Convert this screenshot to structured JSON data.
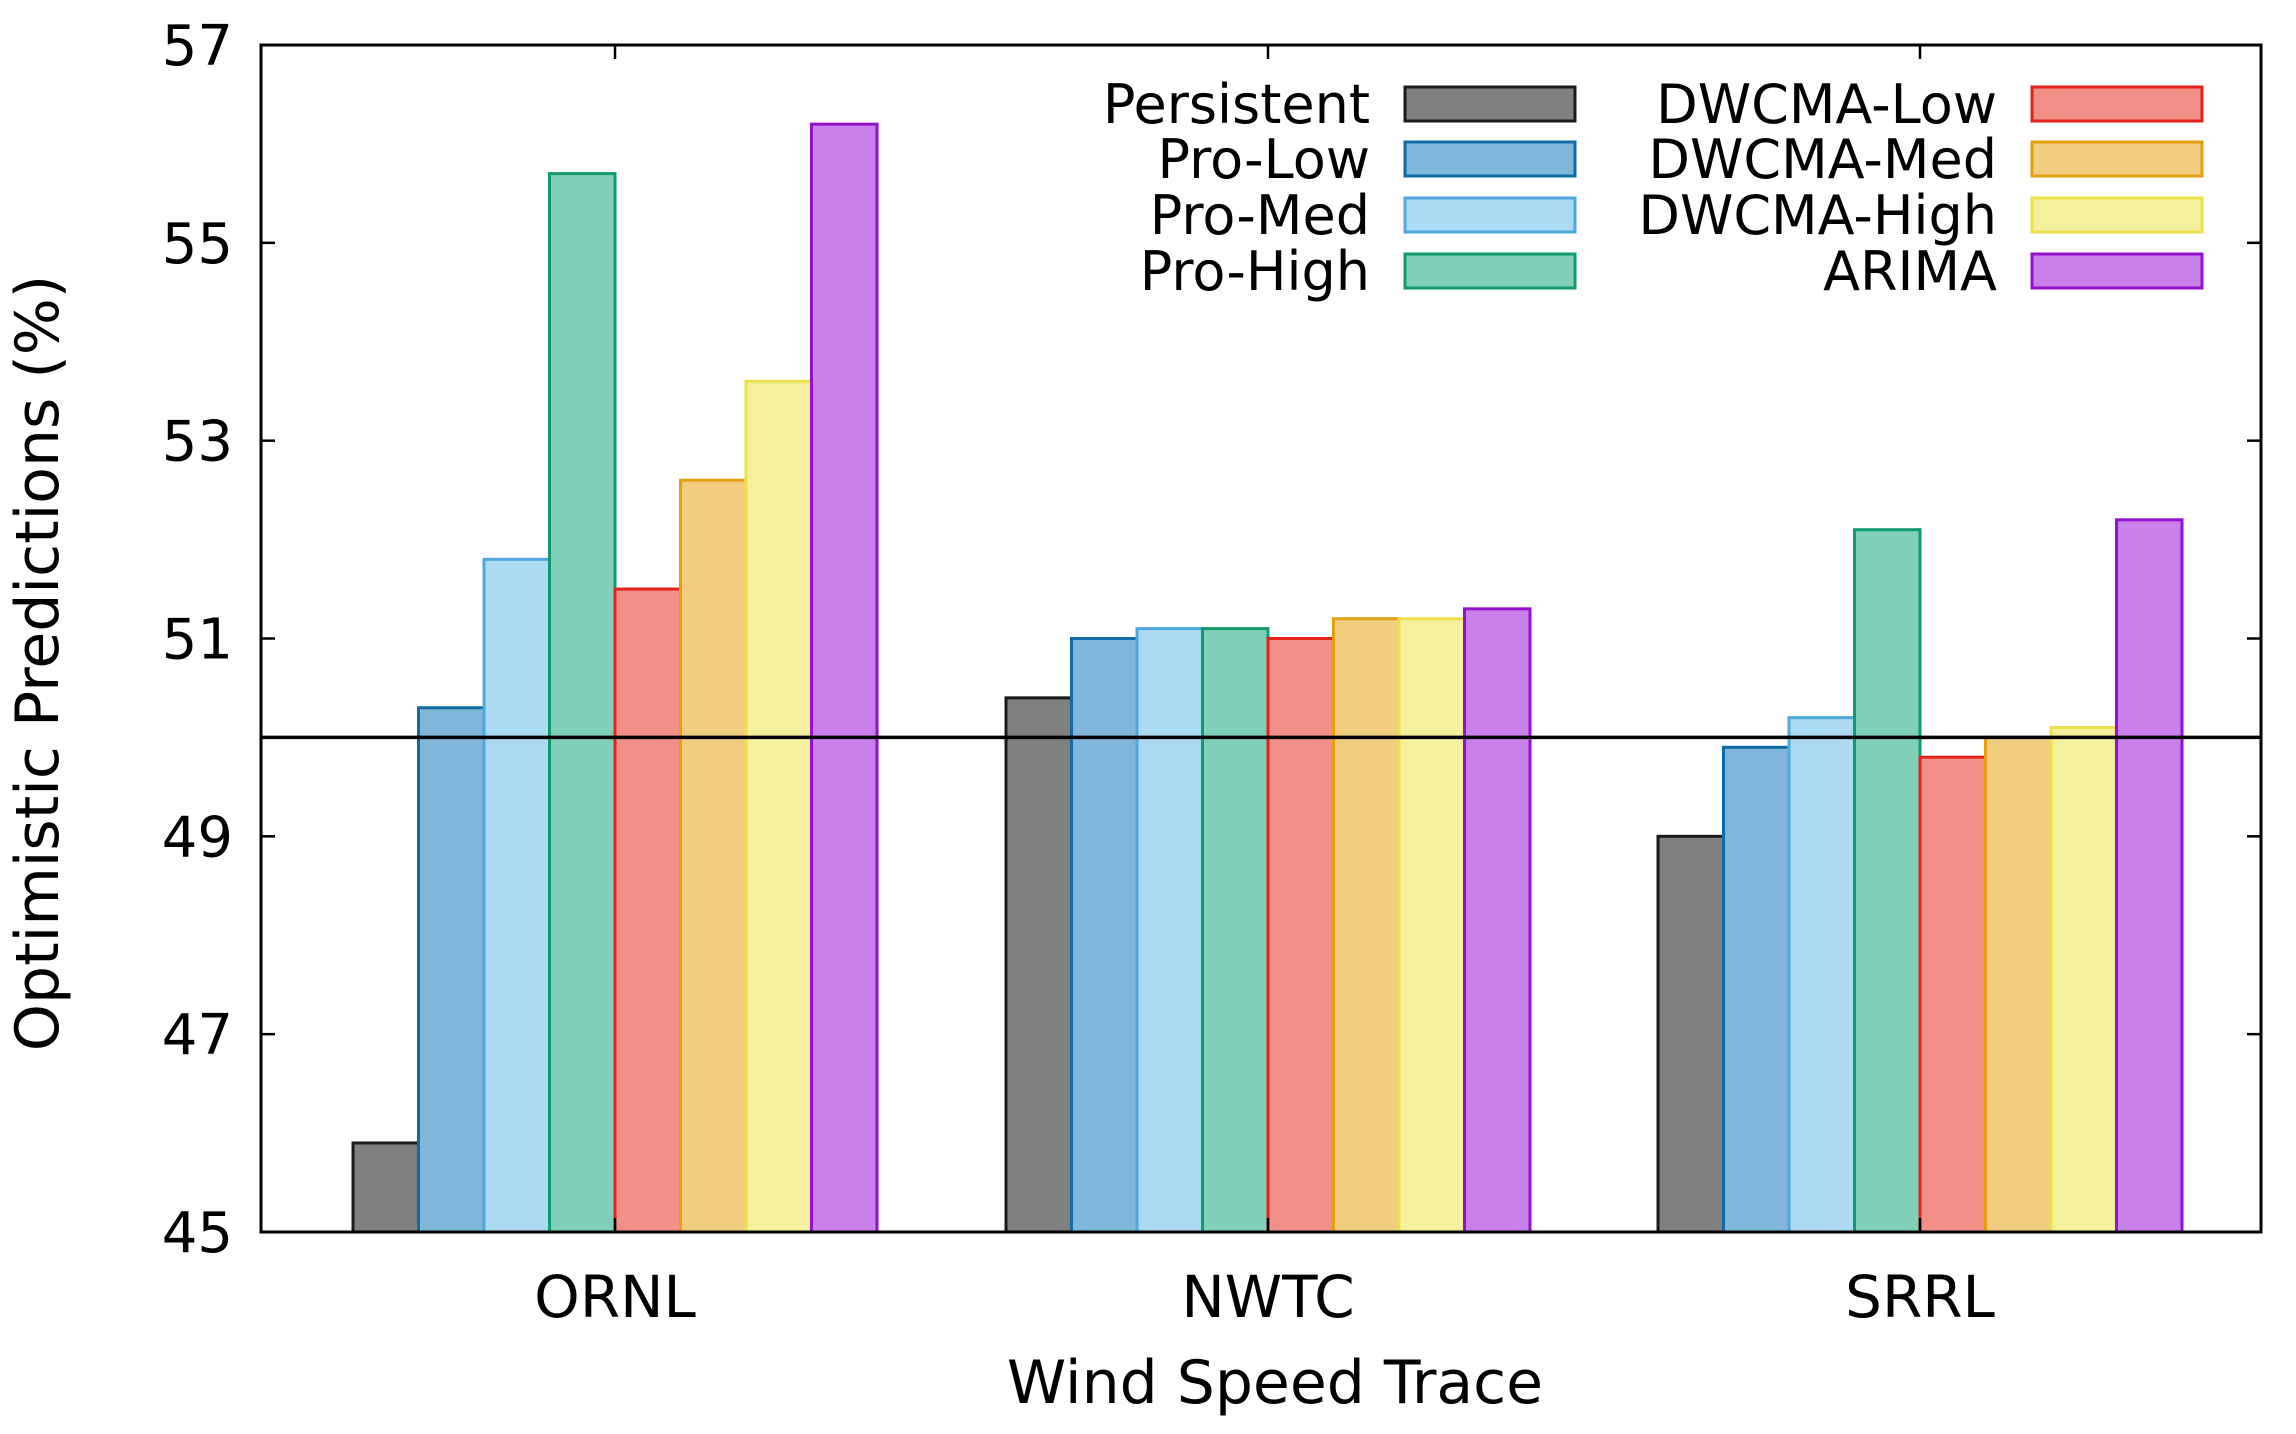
{
  "chart_data": {
    "type": "bar",
    "title": "",
    "xlabel": "Wind Speed Trace",
    "ylabel": "Optimistic Predictions (%)",
    "ylim": [
      45,
      57
    ],
    "yticks": [
      45,
      47,
      49,
      51,
      53,
      55,
      57
    ],
    "reference_line": 50,
    "categories": [
      "ORNL",
      "NWTC",
      "SRRL"
    ],
    "legend_position": "top-right",
    "series": [
      {
        "name": "Persistent",
        "fill": "#808080",
        "stroke": "#1a1a1a",
        "values": [
          45.9,
          50.4,
          49.0
        ]
      },
      {
        "name": "Pro-Low",
        "fill": "#80b6d9",
        "stroke": "#0f6aa5",
        "values": [
          50.3,
          51.0,
          49.9
        ]
      },
      {
        "name": "Pro-Med",
        "fill": "#acd9f3",
        "stroke": "#4ca8dd",
        "values": [
          51.8,
          51.1,
          50.2
        ]
      },
      {
        "name": "Pro-High",
        "fill": "#80d0b9",
        "stroke": "#119a6e",
        "values": [
          55.7,
          51.1,
          52.1
        ]
      },
      {
        "name": "DWCMA-Low",
        "fill": "#f29087",
        "stroke": "#e3231b",
        "values": [
          51.5,
          51.0,
          49.8
        ]
      },
      {
        "name": "DWCMA-Med",
        "fill": "#f1cd80",
        "stroke": "#e5a012",
        "values": [
          52.6,
          51.2,
          50.0
        ]
      },
      {
        "name": "DWCMA-High",
        "fill": "#f5f09e",
        "stroke": "#eee04a",
        "values": [
          53.6,
          51.2,
          50.1
        ]
      },
      {
        "name": "ARIMA",
        "fill": "#c980ea",
        "stroke": "#9412ce",
        "values": [
          56.2,
          51.3,
          52.2
        ]
      }
    ]
  }
}
